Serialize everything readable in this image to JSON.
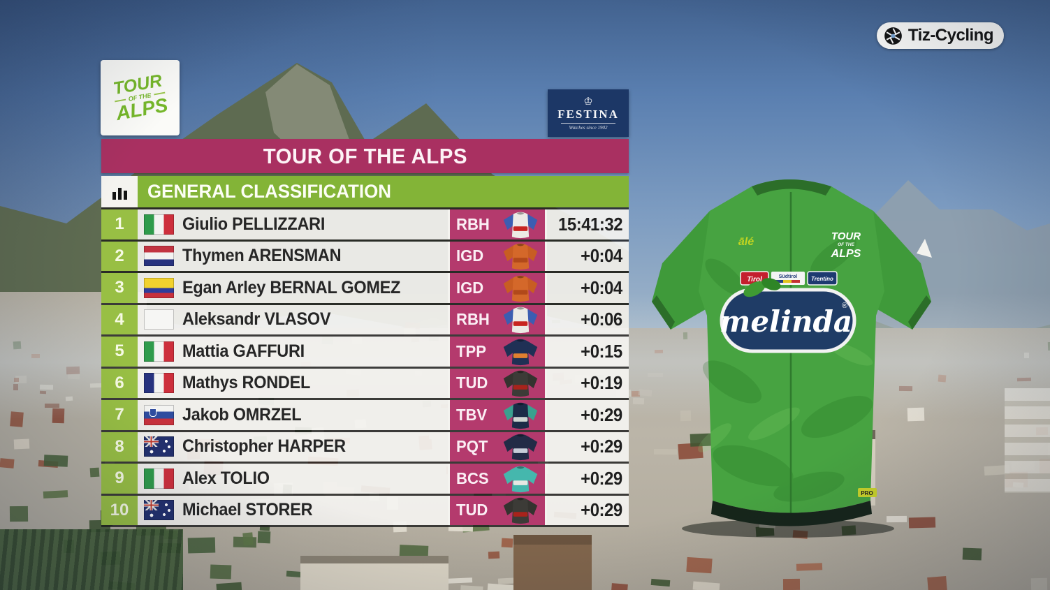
{
  "broadcaster": {
    "label": "Tiz-Cycling",
    "icon": "aperture-icon"
  },
  "event_logo": {
    "top": "TOUR",
    "mid": "OF THE",
    "bottom": "ALPS"
  },
  "festina": {
    "crest": "♔",
    "name": "FESTINA",
    "tagline": "Watches since 1902"
  },
  "title_bar": {
    "text": "TOUR OF THE ALPS"
  },
  "section_bar": {
    "text": "GENERAL CLASSIFICATION",
    "icon": "bar-chart-icon"
  },
  "colors": {
    "title_magenta": "#a93061",
    "team_magenta": "#b43a6d",
    "section_green": "#83b437",
    "rank_green": "#98bf44",
    "leader_jersey_green": "#47a341"
  },
  "standings": [
    {
      "rank": "1",
      "flag": "it",
      "name": "Giulio PELLIZZARI",
      "team": "RBH",
      "time": "15:41:32",
      "jersey": {
        "body": "#eceae5",
        "sleeve": "#3c5db1",
        "accent": "#c8241f"
      }
    },
    {
      "rank": "2",
      "flag": "nl",
      "name": "Thymen ARENSMAN",
      "team": "IGD",
      "time": "+0:04",
      "jersey": {
        "body": "#d4682a",
        "sleeve": "#c85d22",
        "accent": "#b1491a"
      }
    },
    {
      "rank": "3",
      "flag": "co",
      "name": "Egan Arley BERNAL GOMEZ",
      "team": "IGD",
      "time": "+0:04",
      "jersey": {
        "body": "#d4682a",
        "sleeve": "#c85d22",
        "accent": "#b1491a"
      }
    },
    {
      "rank": "4",
      "flag": "neutral",
      "name": "Aleksandr VLASOV",
      "team": "RBH",
      "time": "+0:06",
      "jersey": {
        "body": "#eceae5",
        "sleeve": "#3c5db1",
        "accent": "#c8241f"
      }
    },
    {
      "rank": "5",
      "flag": "it",
      "name": "Mattia GAFFURI",
      "team": "TPP",
      "time": "+0:15",
      "jersey": {
        "body": "#1f3055",
        "sleeve": "#1f3055",
        "accent": "#e0802f"
      }
    },
    {
      "rank": "6",
      "flag": "fr",
      "name": "Mathys RONDEL",
      "team": "TUD",
      "time": "+0:19",
      "jersey": {
        "body": "#3c3b37",
        "sleeve": "#34332f",
        "accent": "#a8231b"
      }
    },
    {
      "rank": "7",
      "flag": "si",
      "name": "Jakob OMRZEL",
      "team": "TBV",
      "time": "+0:29",
      "jersey": {
        "body": "#1c2b47",
        "sleeve": "#3aa08f",
        "accent": "#cfd6d2"
      }
    },
    {
      "rank": "8",
      "flag": "au",
      "name": "Christopher HARPER",
      "team": "PQT",
      "time": "+0:29",
      "jersey": {
        "body": "#222b46",
        "sleeve": "#222b46",
        "accent": "#c7cdd8"
      }
    },
    {
      "rank": "9",
      "flag": "it",
      "name": "Alex TOLIO",
      "team": "BCS",
      "time": "+0:29",
      "jersey": {
        "body": "#45b7ad",
        "sleeve": "#45b7ad",
        "accent": "#e8e7e2"
      }
    },
    {
      "rank": "10",
      "flag": "au",
      "name": "Michael STORER",
      "team": "TUD",
      "time": "+0:29",
      "jersey": {
        "body": "#3c3b37",
        "sleeve": "#34332f",
        "accent": "#a8231b"
      }
    }
  ],
  "leader_jersey": {
    "brand": "ālé",
    "event_top": "TOUR",
    "event_mid": "OF THE",
    "event_bottom": "ALPS",
    "sponsor_left": "Tirol",
    "sponsor_mid": "Südtirol",
    "sponsor_right": "Trentino",
    "chest_logo": "melinda",
    "chest_reg": "®",
    "tag": "PRO"
  }
}
